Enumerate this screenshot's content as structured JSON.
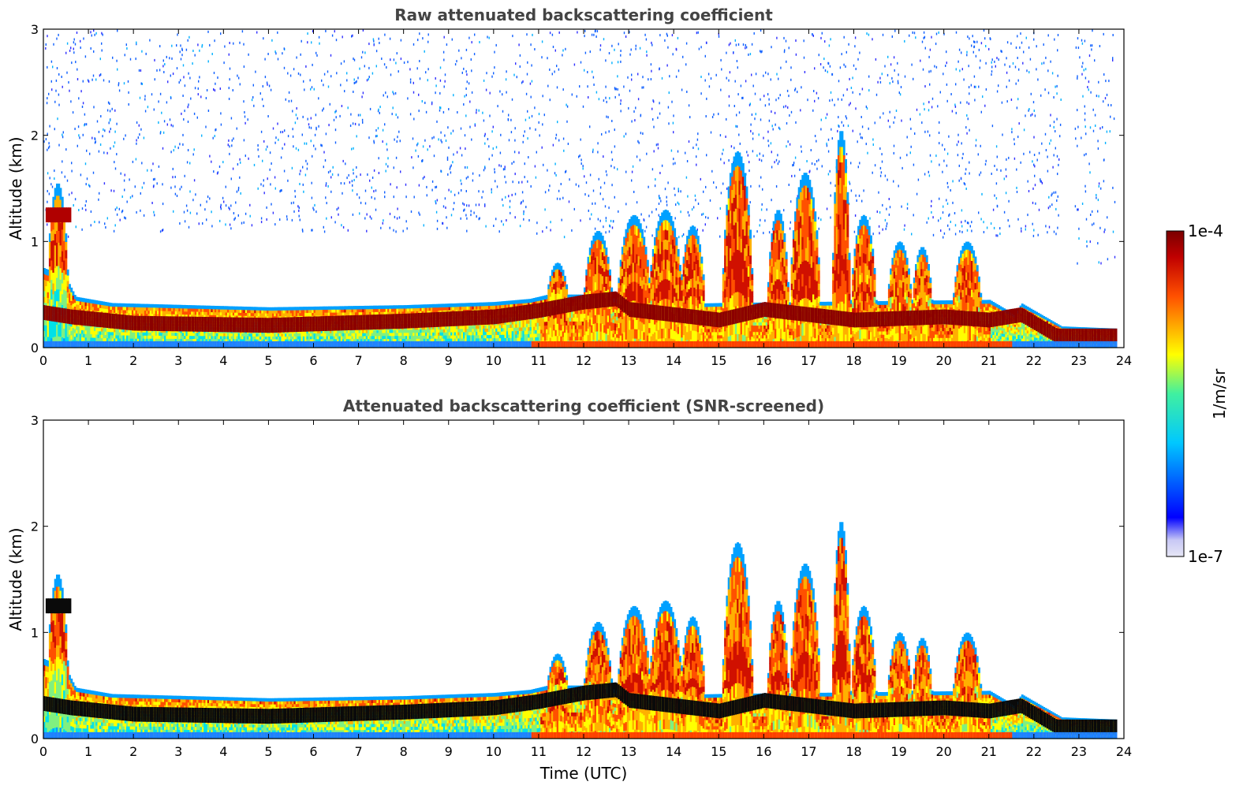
{
  "chart_data": [
    {
      "type": "heatmap",
      "title": "Raw attenuated backscattering coefficient",
      "xlabel": "",
      "ylabel": "Altitude (km)",
      "xlim": [
        0,
        24
      ],
      "ylim": [
        0,
        3
      ],
      "xticks": [
        "0",
        "1",
        "2",
        "3",
        "4",
        "5",
        "6",
        "7",
        "8",
        "9",
        "10",
        "11",
        "12",
        "13",
        "14",
        "15",
        "16",
        "17",
        "18",
        "19",
        "20",
        "21",
        "22",
        "23",
        "24"
      ],
      "yticks": [
        "0",
        "1",
        "2",
        "3"
      ],
      "screened": false,
      "description_values": {
        "boundary_layer_top_km": [
          [
            0,
            0.72
          ],
          [
            0.6,
            0.48
          ],
          [
            1.5,
            0.4
          ],
          [
            5,
            0.36
          ],
          [
            8,
            0.38
          ],
          [
            10,
            0.42
          ],
          [
            10.8,
            0.44
          ]
        ],
        "aerosol_layer_km": [
          [
            0,
            0.3
          ],
          [
            5,
            0.25
          ],
          [
            10,
            0.3
          ]
        ],
        "clouds": [
          {
            "time": 0.3,
            "base_km": 1.15,
            "top_km": 1.55
          },
          {
            "time": 11.4,
            "base_km": 0.45,
            "top_km": 0.8
          },
          {
            "time": 13.5,
            "base_km": 0.3,
            "top_km": 1.25
          },
          {
            "time": 15.4,
            "base_km": 0.3,
            "top_km": 1.85
          },
          {
            "time": 17.0,
            "base_km": 0.3,
            "top_km": 1.65
          },
          {
            "time": 17.7,
            "base_km": 0.3,
            "top_km": 2.05
          },
          {
            "time": 18.2,
            "base_km": 0.3,
            "top_km": 1.25
          },
          {
            "time": 19.1,
            "base_km": 0.3,
            "top_km": 1.0
          },
          {
            "time": 20.5,
            "base_km": 0.3,
            "top_km": 1.0
          }
        ],
        "noise_region": {
          "x": [
            0,
            23.8
          ],
          "y": [
            1.0,
            3.0
          ]
        }
      }
    },
    {
      "type": "heatmap",
      "title": "Attenuated backscattering coefficient (SNR-screened)",
      "xlabel": "Time (UTC)",
      "ylabel": "Altitude (km)",
      "xlim": [
        0,
        24
      ],
      "ylim": [
        0,
        3
      ],
      "xticks": [
        "0",
        "1",
        "2",
        "3",
        "4",
        "5",
        "6",
        "7",
        "8",
        "9",
        "10",
        "11",
        "12",
        "13",
        "14",
        "15",
        "16",
        "17",
        "18",
        "19",
        "20",
        "21",
        "22",
        "23",
        "24"
      ],
      "yticks": [
        "0",
        "1",
        "2",
        "3"
      ],
      "screened": true
    }
  ],
  "colorbar": {
    "label": "1/m/sr",
    "min_label": "1e-7",
    "max_label": "1e-4",
    "colormap": [
      "#e6e6f5",
      "#0000ff",
      "#00c8ff",
      "#ffff00",
      "#ff6400",
      "#8b0000"
    ]
  }
}
